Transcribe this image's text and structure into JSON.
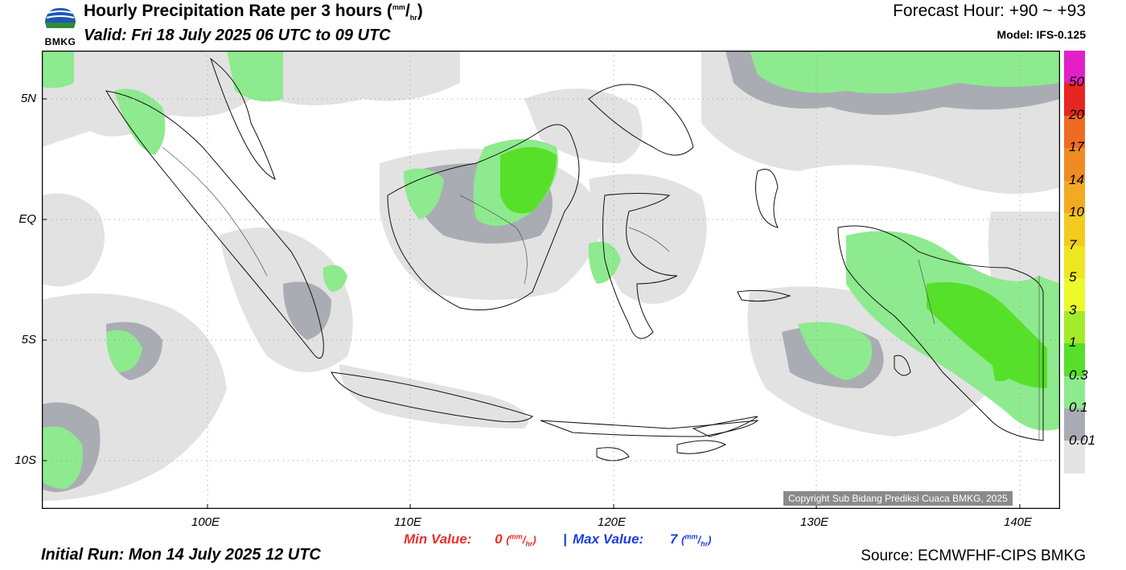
{
  "header": {
    "title": "Hourly Precipitation Rate per 3 hours",
    "title_unit_num": "mm",
    "title_unit_den": "hr",
    "valid": "Valid: Fri 18 July 2025 06 UTC to 09 UTC",
    "forecast_hour": "Forecast Hour: +90 ~ +93",
    "model": "Model: IFS-0.125",
    "logo_text": "BMKG"
  },
  "map": {
    "lat_ticks": [
      "5N",
      "EQ",
      "5S",
      "10S"
    ],
    "lon_ticks": [
      "100E",
      "110E",
      "120E",
      "130E",
      "140E"
    ],
    "copyright": "Copyright Sub Bidang Prediksi Cuaca BMKG, 2025"
  },
  "colorbar": {
    "labels": [
      "50",
      "20",
      "17",
      "14",
      "10",
      "7",
      "5",
      "3",
      "1",
      "0.3",
      "0.1",
      "0.01"
    ],
    "colors": [
      "#e21fc8",
      "#e7261f",
      "#ef6b22",
      "#f08b23",
      "#f3aa21",
      "#f3cb1f",
      "#efe521",
      "#ecf92a",
      "#a3ea2a",
      "#56e02a",
      "#8eea8e",
      "#a9adb3",
      "#e4e4e4"
    ]
  },
  "footer": {
    "min_label": "Min Value:",
    "min_value": "0",
    "max_label": "Max Value:",
    "max_value": "7",
    "unit_num": "mm",
    "unit_den": "hr",
    "separator": "|",
    "initial_run": "Initial Run: Mon 14 July 2025 12 UTC",
    "source": "Source: ECMWFHF-CIPS BMKG"
  },
  "colors": {
    "min_red": "#e8302e",
    "max_blue": "#1f3ee0",
    "rain_light_gray": "#e2e2e2",
    "rain_mid_gray": "#a9adb3",
    "rain_light_green": "#8eea8e",
    "rain_green": "#56e02a"
  }
}
